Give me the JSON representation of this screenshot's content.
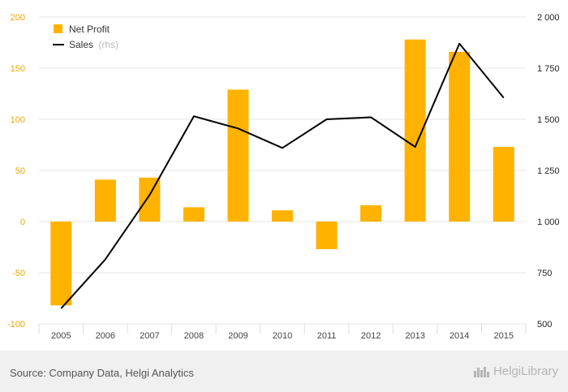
{
  "chart_data": {
    "type": "bar+line",
    "categories": [
      "2005",
      "2006",
      "2007",
      "2008",
      "2009",
      "2010",
      "2011",
      "2012",
      "2013",
      "2014",
      "2015"
    ],
    "series": [
      {
        "name": "Net Profit",
        "type": "bar",
        "axis": "left",
        "color": "#ffb300",
        "values": [
          -82,
          41,
          43,
          14,
          129,
          11,
          -27,
          16,
          178,
          166,
          73
        ]
      },
      {
        "name": "Sales",
        "name_suffix": "(rhs)",
        "type": "line",
        "axis": "right",
        "color": "#000000",
        "values": [
          575,
          815,
          1130,
          1515,
          1455,
          1360,
          1500,
          1510,
          1365,
          1870,
          1605
        ]
      }
    ],
    "y_left": {
      "min": -100,
      "max": 200,
      "ticks": [
        -100,
        -50,
        0,
        50,
        100,
        150,
        200
      ],
      "tick_labels": [
        "-100",
        "-50",
        "0",
        "50",
        "100",
        "150",
        "200"
      ],
      "color": "#e8a800"
    },
    "y_right": {
      "min": 500,
      "max": 2000,
      "ticks": [
        500,
        750,
        1000,
        1250,
        1500,
        1750,
        2000
      ],
      "tick_labels": [
        "500",
        "750",
        "1 000",
        "1 250",
        "1 500",
        "1 750",
        "2 000"
      ],
      "color": "#222222"
    },
    "grid": true,
    "legend": "top-left"
  },
  "footer": {
    "source": "Source: Company Data, Helgi Analytics",
    "logo_text": "HelgiLibrary",
    "logo_icon": "city-skyline-icon"
  }
}
